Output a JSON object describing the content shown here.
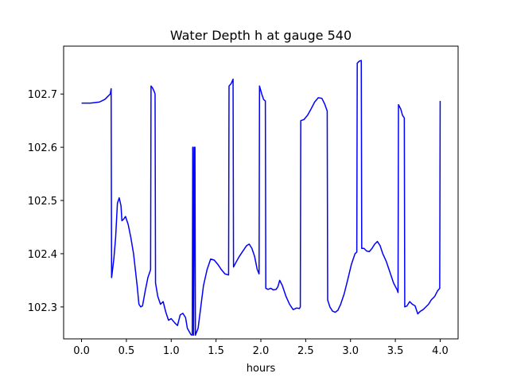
{
  "chart_data": {
    "type": "line",
    "title": "Water Depth h at gauge 540",
    "xlabel": "hours",
    "ylabel": "",
    "xlim": [
      -0.2,
      4.2
    ],
    "ylim": [
      102.24,
      102.79
    ],
    "xticks": [
      0.0,
      0.5,
      1.0,
      1.5,
      2.0,
      2.5,
      3.0,
      3.5,
      4.0
    ],
    "xtick_labels": [
      "0.0",
      "0.5",
      "1.0",
      "1.5",
      "2.0",
      "2.5",
      "3.0",
      "3.5",
      "4.0"
    ],
    "yticks": [
      102.3,
      102.4,
      102.5,
      102.6,
      102.7
    ],
    "ytick_labels": [
      "102.3",
      "102.4",
      "102.5",
      "102.6",
      "102.7"
    ],
    "grid": false,
    "series": [
      {
        "color": "#0000ff",
        "points": [
          [
            0.0,
            102.683
          ],
          [
            0.1,
            102.683
          ],
          [
            0.2,
            102.685
          ],
          [
            0.26,
            102.69
          ],
          [
            0.32,
            102.7
          ],
          [
            0.33,
            102.71
          ],
          [
            0.335,
            102.355
          ],
          [
            0.36,
            102.39
          ],
          [
            0.38,
            102.43
          ],
          [
            0.4,
            102.495
          ],
          [
            0.42,
            102.505
          ],
          [
            0.44,
            102.49
          ],
          [
            0.45,
            102.462
          ],
          [
            0.47,
            102.465
          ],
          [
            0.49,
            102.47
          ],
          [
            0.52,
            102.455
          ],
          [
            0.55,
            102.43
          ],
          [
            0.58,
            102.4
          ],
          [
            0.62,
            102.34
          ],
          [
            0.64,
            102.305
          ],
          [
            0.66,
            102.3
          ],
          [
            0.68,
            102.302
          ],
          [
            0.71,
            102.33
          ],
          [
            0.74,
            102.355
          ],
          [
            0.76,
            102.365
          ],
          [
            0.77,
            102.37
          ],
          [
            0.775,
            102.715
          ],
          [
            0.79,
            102.712
          ],
          [
            0.81,
            102.705
          ],
          [
            0.82,
            102.7
          ],
          [
            0.825,
            102.345
          ],
          [
            0.85,
            102.32
          ],
          [
            0.88,
            102.305
          ],
          [
            0.91,
            102.31
          ],
          [
            0.94,
            102.29
          ],
          [
            0.97,
            102.275
          ],
          [
            1.0,
            102.278
          ],
          [
            1.04,
            102.27
          ],
          [
            1.07,
            102.265
          ],
          [
            1.1,
            102.285
          ],
          [
            1.13,
            102.288
          ],
          [
            1.16,
            102.28
          ],
          [
            1.18,
            102.26
          ],
          [
            1.22,
            102.248
          ],
          [
            1.235,
            102.247
          ],
          [
            1.24,
            102.6
          ],
          [
            1.245,
            102.6
          ],
          [
            1.25,
            102.247
          ],
          [
            1.26,
            102.6
          ],
          [
            1.265,
            102.6
          ],
          [
            1.27,
            102.247
          ],
          [
            1.3,
            102.26
          ],
          [
            1.33,
            102.3
          ],
          [
            1.36,
            102.34
          ],
          [
            1.4,
            102.37
          ],
          [
            1.44,
            102.39
          ],
          [
            1.48,
            102.388
          ],
          [
            1.52,
            102.38
          ],
          [
            1.56,
            102.37
          ],
          [
            1.6,
            102.362
          ],
          [
            1.64,
            102.36
          ],
          [
            1.645,
            102.715
          ],
          [
            1.67,
            102.72
          ],
          [
            1.69,
            102.728
          ],
          [
            1.695,
            102.375
          ],
          [
            1.72,
            102.383
          ],
          [
            1.76,
            102.395
          ],
          [
            1.8,
            102.405
          ],
          [
            1.84,
            102.415
          ],
          [
            1.87,
            102.418
          ],
          [
            1.9,
            102.41
          ],
          [
            1.93,
            102.395
          ],
          [
            1.96,
            102.37
          ],
          [
            1.98,
            102.362
          ],
          [
            1.985,
            102.715
          ],
          [
            2.01,
            102.7
          ],
          [
            2.03,
            102.69
          ],
          [
            2.05,
            102.687
          ],
          [
            2.055,
            102.335
          ],
          [
            2.08,
            102.333
          ],
          [
            2.11,
            102.335
          ],
          [
            2.14,
            102.332
          ],
          [
            2.17,
            102.333
          ],
          [
            2.19,
            102.338
          ],
          [
            2.21,
            102.35
          ],
          [
            2.24,
            102.34
          ],
          [
            2.28,
            102.32
          ],
          [
            2.32,
            102.305
          ],
          [
            2.36,
            102.295
          ],
          [
            2.4,
            102.298
          ],
          [
            2.43,
            102.297
          ],
          [
            2.44,
            102.3
          ],
          [
            2.445,
            102.65
          ],
          [
            2.48,
            102.652
          ],
          [
            2.52,
            102.66
          ],
          [
            2.56,
            102.672
          ],
          [
            2.6,
            102.685
          ],
          [
            2.64,
            102.693
          ],
          [
            2.68,
            102.692
          ],
          [
            2.71,
            102.682
          ],
          [
            2.74,
            102.668
          ],
          [
            2.745,
            102.313
          ],
          [
            2.77,
            102.3
          ],
          [
            2.8,
            102.292
          ],
          [
            2.83,
            102.29
          ],
          [
            2.86,
            102.294
          ],
          [
            2.89,
            102.305
          ],
          [
            2.93,
            102.325
          ],
          [
            2.97,
            102.352
          ],
          [
            3.01,
            102.38
          ],
          [
            3.05,
            102.4
          ],
          [
            3.07,
            102.403
          ],
          [
            3.075,
            102.758
          ],
          [
            3.1,
            102.762
          ],
          [
            3.12,
            102.763
          ],
          [
            3.125,
            102.41
          ],
          [
            3.15,
            102.41
          ],
          [
            3.18,
            102.405
          ],
          [
            3.21,
            102.404
          ],
          [
            3.24,
            102.41
          ],
          [
            3.27,
            102.418
          ],
          [
            3.3,
            102.423
          ],
          [
            3.33,
            102.415
          ],
          [
            3.36,
            102.4
          ],
          [
            3.4,
            102.385
          ],
          [
            3.44,
            102.365
          ],
          [
            3.48,
            102.345
          ],
          [
            3.52,
            102.332
          ],
          [
            3.53,
            102.327
          ],
          [
            3.535,
            102.68
          ],
          [
            3.56,
            102.672
          ],
          [
            3.58,
            102.66
          ],
          [
            3.6,
            102.655
          ],
          [
            3.605,
            102.3
          ],
          [
            3.63,
            102.302
          ],
          [
            3.66,
            102.31
          ],
          [
            3.69,
            102.305
          ],
          [
            3.72,
            102.302
          ],
          [
            3.75,
            102.287
          ],
          [
            3.78,
            102.292
          ],
          [
            3.81,
            102.295
          ],
          [
            3.84,
            102.3
          ],
          [
            3.87,
            102.305
          ],
          [
            3.9,
            102.313
          ],
          [
            3.94,
            102.32
          ],
          [
            3.97,
            102.33
          ],
          [
            3.995,
            102.335
          ],
          [
            4.0,
            102.687
          ]
        ]
      }
    ]
  }
}
